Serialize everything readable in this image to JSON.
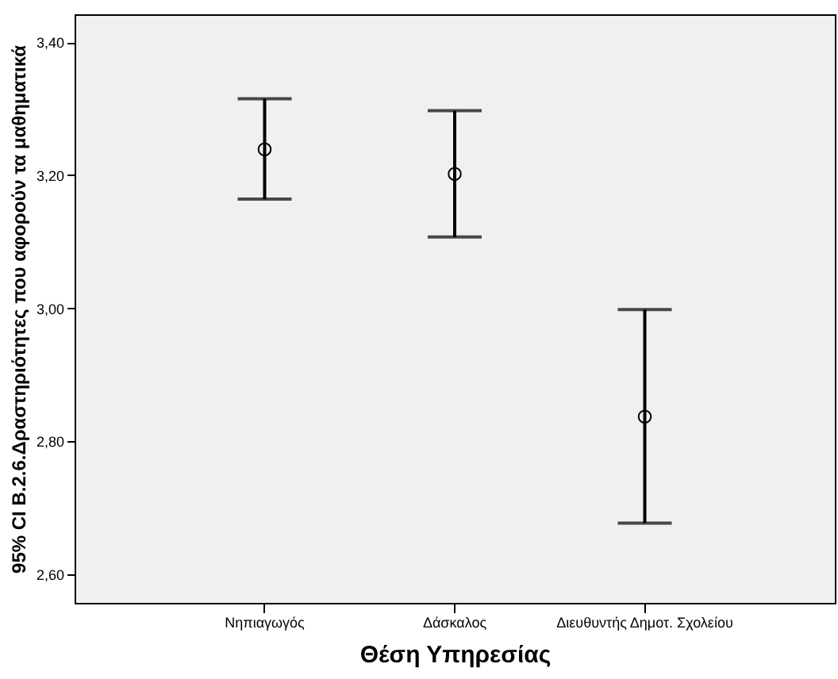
{
  "chart_data": {
    "type": "scatter",
    "xlabel": "Θέση Υπηρεσίας",
    "ylabel": "95% CI Β.2.6.Δραστηριότητες που αφορούν τα μαθηματικά",
    "categories": [
      "Νηπιαγωγός",
      "Δάσκαλος",
      "Διευθυντής Δημοτ. Σχολείου"
    ],
    "values": [
      3.239,
      3.202,
      2.837
    ],
    "errors": [
      [
        3.164,
        3.315
      ],
      [
        3.107,
        3.297
      ],
      [
        2.677,
        2.998
      ]
    ],
    "color": "#000000",
    "marker": "circle",
    "grid": false,
    "ylim": [
      2.557,
      3.442
    ],
    "yticks": [
      {
        "value": 2.6,
        "label": "2,60"
      },
      {
        "value": 2.8,
        "label": "2,80"
      },
      {
        "value": 3.0,
        "label": "3,00"
      },
      {
        "value": 3.2,
        "label": "3,20"
      },
      {
        "value": 3.4,
        "label": "3,40"
      }
    ]
  }
}
